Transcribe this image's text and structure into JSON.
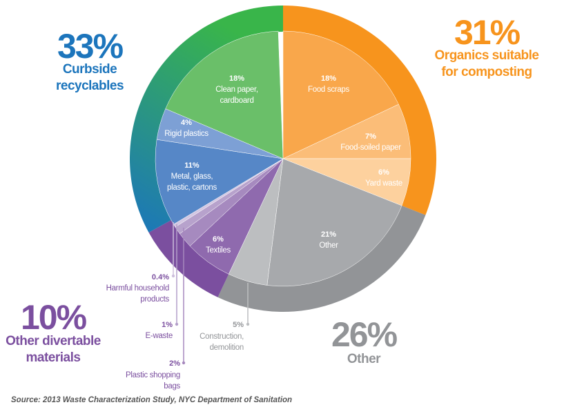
{
  "chart_data": {
    "type": "pie",
    "subtype": "donut-with-inner-pie",
    "title": "",
    "source": "Source: 2013 Waste Characterization Study, NYC Department of Sanitation",
    "slices": [
      {
        "pct": "18%",
        "value": 18,
        "label": [
          "Food scraps"
        ],
        "color": "#F9A74B"
      },
      {
        "pct": "7%",
        "value": 7,
        "label": [
          "Food-soiled paper"
        ],
        "color": "#FBBD78"
      },
      {
        "pct": "6%",
        "value": 6,
        "label": [
          "Yard waste"
        ],
        "color": "#FDD19E"
      },
      {
        "pct": "21%",
        "value": 21,
        "label": [
          "Other"
        ],
        "color": "#A7A9AC"
      },
      {
        "pct": "5%",
        "value": 5,
        "label": [
          "Construction,",
          "demolition"
        ],
        "color": "#BCBEC0"
      },
      {
        "pct": "6%",
        "value": 6,
        "label": [
          "Textiles"
        ],
        "color": "#8F6AAE"
      },
      {
        "pct": "2%",
        "value": 2,
        "label": [
          "Plastic shopping",
          "bags"
        ],
        "color": "#A68ABF"
      },
      {
        "pct": "1%",
        "value": 1,
        "label": [
          "E-waste"
        ],
        "color": "#B7A2CC"
      },
      {
        "pct": "0.4%",
        "value": 0.4,
        "label": [
          "Harmful household",
          "products"
        ],
        "color": "#D3C6E2"
      },
      {
        "pct": "11%",
        "value": 11,
        "label": [
          "Metal, glass,",
          "plastic, cartons"
        ],
        "color": "#5687C7"
      },
      {
        "pct": "4%",
        "value": 4,
        "label": [
          "Rigid plastics"
        ],
        "color": "#7DA0D5"
      },
      {
        "pct": "18%",
        "value": 18,
        "label": [
          "Clean paper,",
          "cardboard"
        ],
        "color": "#6ABF69"
      }
    ],
    "groups": [
      {
        "pct": "31%",
        "value": 31,
        "label": [
          "Organics suitable",
          "for composting"
        ],
        "color": "#F7941D"
      },
      {
        "pct": "26%",
        "value": 26,
        "label": [
          "Other"
        ],
        "color": "#929497"
      },
      {
        "pct": "10%",
        "value": 10,
        "label": [
          "Other divertable",
          "materials"
        ],
        "color": "#7B4F9F"
      },
      {
        "pct": "33%",
        "value": 33,
        "label": [
          "Curbside",
          "recyclables"
        ],
        "color_start": "#1B75BC",
        "color_end": "#39B54A"
      }
    ]
  }
}
